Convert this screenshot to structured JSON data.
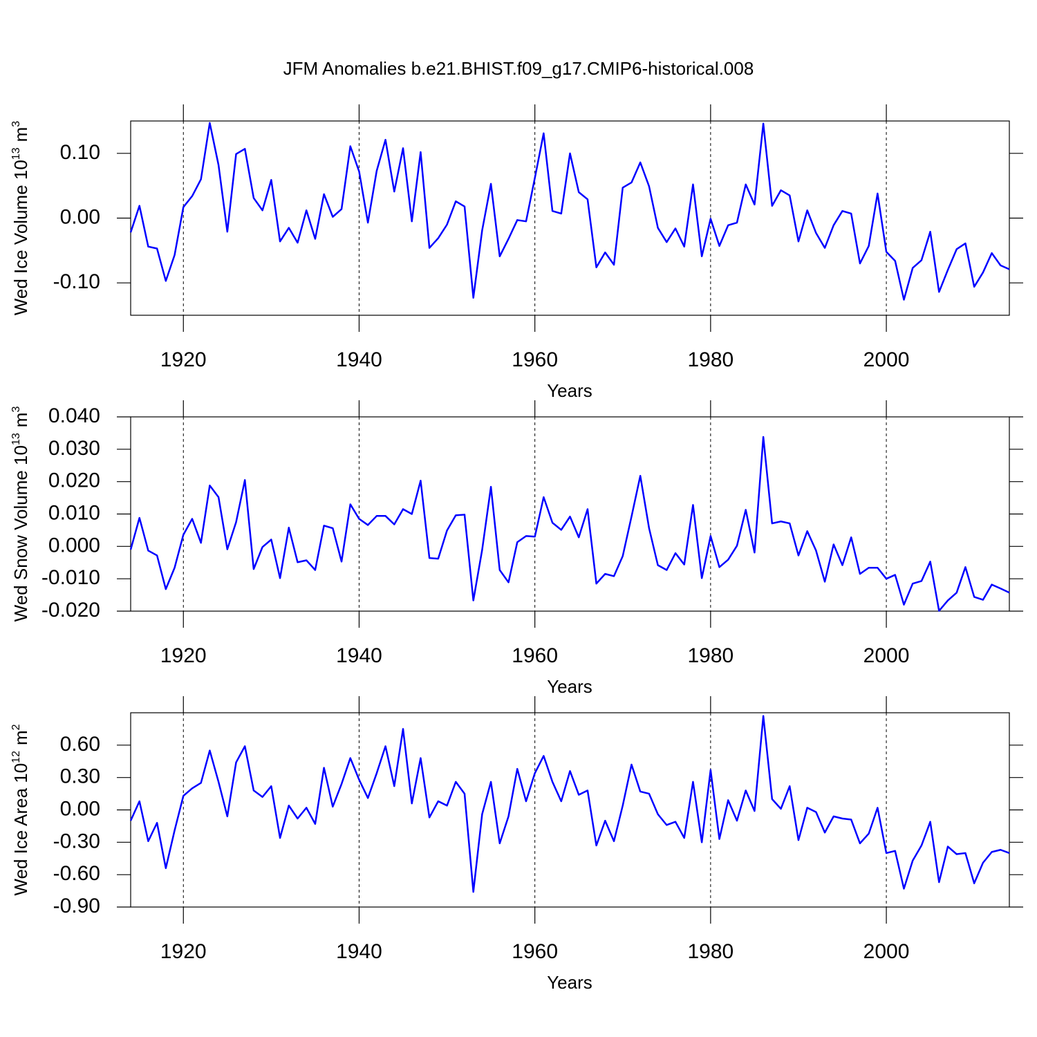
{
  "chart_data": [
    {
      "type": "line",
      "title": "JFM Anomalies b.e21.BHIST.f09_g17.CMIP6-historical.008",
      "ylabel": {
        "text": "Wed Ice Volume 10",
        "exponent": "13",
        "unit": "m",
        "unit_exponent": "3"
      },
      "xlabel": "Years",
      "color": "#0000ff",
      "grid": true,
      "xlim": [
        1914,
        2014
      ],
      "xticks": [
        1920,
        1940,
        1960,
        1980,
        2000
      ],
      "ylim": [
        -0.15,
        0.15
      ],
      "yticks": [
        {
          "value": -0.1,
          "label": "-0.10"
        },
        {
          "value": 0,
          "label": "0.00"
        },
        {
          "value": 0.1,
          "label": "0.10"
        }
      ],
      "x": [
        1914,
        1915,
        1916,
        1917,
        1918,
        1919,
        1920,
        1921,
        1922,
        1923,
        1924,
        1925,
        1926,
        1927,
        1928,
        1929,
        1930,
        1931,
        1932,
        1933,
        1934,
        1935,
        1936,
        1937,
        1938,
        1939,
        1940,
        1941,
        1942,
        1943,
        1944,
        1945,
        1946,
        1947,
        1948,
        1949,
        1950,
        1951,
        1952,
        1953,
        1954,
        1955,
        1956,
        1957,
        1958,
        1959,
        1960,
        1961,
        1962,
        1963,
        1964,
        1965,
        1966,
        1967,
        1968,
        1969,
        1970,
        1971,
        1972,
        1973,
        1974,
        1975,
        1976,
        1977,
        1978,
        1979,
        1980,
        1981,
        1982,
        1983,
        1984,
        1985,
        1986,
        1987,
        1988,
        1989,
        1990,
        1991,
        1992,
        1993,
        1994,
        1995,
        1996,
        1997,
        1998,
        1999,
        2000,
        2001,
        2002,
        2003,
        2004,
        2005,
        2006,
        2007,
        2008,
        2009,
        2010,
        2011,
        2012,
        2013,
        2014
      ],
      "values": [
        -0.022,
        0.019,
        -0.044,
        -0.047,
        -0.097,
        -0.057,
        0.017,
        0.034,
        0.06,
        0.147,
        0.082,
        -0.021,
        0.099,
        0.107,
        0.031,
        0.012,
        0.059,
        -0.036,
        -0.015,
        -0.038,
        0.012,
        -0.032,
        0.037,
        0.002,
        0.014,
        0.111,
        0.072,
        -0.007,
        0.073,
        0.121,
        0.041,
        0.108,
        -0.005,
        0.102,
        -0.046,
        -0.031,
        -0.01,
        0.026,
        0.018,
        -0.123,
        -0.019,
        0.053,
        -0.059,
        -0.032,
        -0.003,
        -0.005,
        0.062,
        0.131,
        0.011,
        0.007,
        0.1,
        0.04,
        0.029,
        -0.076,
        -0.053,
        -0.072,
        0.047,
        0.055,
        0.086,
        0.049,
        -0.015,
        -0.037,
        -0.016,
        -0.044,
        0.052,
        -0.059,
        -0.001,
        -0.043,
        -0.011,
        -0.007,
        0.052,
        0.021,
        0.146,
        0.019,
        0.043,
        0.035,
        -0.036,
        0.012,
        -0.023,
        -0.046,
        -0.011,
        0.011,
        0.007,
        -0.07,
        -0.043,
        0.038,
        -0.052,
        -0.066,
        -0.126,
        -0.077,
        -0.065,
        -0.021,
        -0.114,
        -0.08,
        -0.048,
        -0.039,
        -0.106,
        -0.084,
        -0.054,
        -0.073,
        -0.079
      ]
    },
    {
      "type": "line",
      "ylabel": {
        "text": "Wed Snow Volume 10",
        "exponent": "13",
        "unit": "m",
        "unit_exponent": "3"
      },
      "xlabel": "Years",
      "color": "#0000ff",
      "grid": true,
      "xlim": [
        1914,
        2014
      ],
      "xticks": [
        1920,
        1940,
        1960,
        1980,
        2000
      ],
      "ylim": [
        -0.02,
        0.04
      ],
      "yticks": [
        {
          "value": -0.02,
          "label": "-0.020"
        },
        {
          "value": -0.01,
          "label": "-0.010"
        },
        {
          "value": 0,
          "label": "0.000"
        },
        {
          "value": 0.01,
          "label": "0.010"
        },
        {
          "value": 0.02,
          "label": "0.020"
        },
        {
          "value": 0.03,
          "label": "0.030"
        },
        {
          "value": 0.04,
          "label": "0.040"
        }
      ],
      "x": [
        1914,
        1915,
        1916,
        1917,
        1918,
        1919,
        1920,
        1921,
        1922,
        1923,
        1924,
        1925,
        1926,
        1927,
        1928,
        1929,
        1930,
        1931,
        1932,
        1933,
        1934,
        1935,
        1936,
        1937,
        1938,
        1939,
        1940,
        1941,
        1942,
        1943,
        1944,
        1945,
        1946,
        1947,
        1948,
        1949,
        1950,
        1951,
        1952,
        1953,
        1954,
        1955,
        1956,
        1957,
        1958,
        1959,
        1960,
        1961,
        1962,
        1963,
        1964,
        1965,
        1966,
        1967,
        1968,
        1969,
        1970,
        1971,
        1972,
        1973,
        1974,
        1975,
        1976,
        1977,
        1978,
        1979,
        1980,
        1981,
        1982,
        1983,
        1984,
        1985,
        1986,
        1987,
        1988,
        1989,
        1990,
        1991,
        1992,
        1993,
        1994,
        1995,
        1996,
        1997,
        1998,
        1999,
        2000,
        2001,
        2002,
        2003,
        2004,
        2005,
        2006,
        2007,
        2008,
        2009,
        2010,
        2011,
        2012,
        2013,
        2014
      ],
      "values": [
        -0.001,
        0.0088,
        -0.0013,
        -0.0028,
        -0.0132,
        -0.0066,
        0.0036,
        0.0085,
        0.0011,
        0.0188,
        0.0152,
        -0.0009,
        0.0075,
        0.0205,
        -0.007,
        -0.0002,
        0.0021,
        -0.0098,
        0.0058,
        -0.0049,
        -0.0043,
        -0.0073,
        0.0064,
        0.0056,
        -0.0047,
        0.013,
        0.0085,
        0.0066,
        0.0094,
        0.0094,
        0.0068,
        0.0115,
        0.01,
        0.0203,
        -0.0036,
        -0.0038,
        0.0049,
        0.0096,
        0.0098,
        -0.0167,
        -0.0011,
        0.0184,
        -0.0073,
        -0.0111,
        0.0013,
        0.0032,
        0.003,
        0.0152,
        0.0073,
        0.0051,
        0.0092,
        0.0028,
        0.0115,
        -0.0115,
        -0.0085,
        -0.0092,
        -0.003,
        0.0092,
        0.0218,
        0.0056,
        -0.0058,
        -0.0073,
        -0.0021,
        -0.0056,
        0.0128,
        -0.0098,
        0.0032,
        -0.0064,
        -0.0041,
        0.0002,
        0.0113,
        -0.0019,
        0.0338,
        0.0071,
        0.0077,
        0.0071,
        -0.0028,
        0.0047,
        -0.0013,
        -0.0109,
        0.0006,
        -0.0058,
        0.0028,
        -0.0085,
        -0.0066,
        -0.0066,
        -0.01,
        -0.0088,
        -0.018,
        -0.0115,
        -0.0107,
        -0.0047,
        -0.0199,
        -0.0167,
        -0.0143,
        -0.0064,
        -0.0156,
        -0.0165,
        -0.0118,
        -0.013,
        -0.0143
      ]
    },
    {
      "type": "line",
      "ylabel": {
        "text": "Wed Ice Area 10",
        "exponent": "12",
        "unit": "m",
        "unit_exponent": "2"
      },
      "xlabel": "Years",
      "color": "#0000ff",
      "grid": true,
      "xlim": [
        1914,
        2014
      ],
      "xticks": [
        1920,
        1940,
        1960,
        1980,
        2000
      ],
      "ylim": [
        -0.9,
        0.9
      ],
      "yticks": [
        {
          "value": -0.9,
          "label": "-0.90"
        },
        {
          "value": -0.6,
          "label": "-0.60"
        },
        {
          "value": -0.3,
          "label": "-0.30"
        },
        {
          "value": 0,
          "label": "0.00"
        },
        {
          "value": 0.3,
          "label": "0.30"
        },
        {
          "value": 0.6,
          "label": "0.60"
        }
      ],
      "x": [
        1914,
        1915,
        1916,
        1917,
        1918,
        1919,
        1920,
        1921,
        1922,
        1923,
        1924,
        1925,
        1926,
        1927,
        1928,
        1929,
        1930,
        1931,
        1932,
        1933,
        1934,
        1935,
        1936,
        1937,
        1938,
        1939,
        1940,
        1941,
        1942,
        1943,
        1944,
        1945,
        1946,
        1947,
        1948,
        1949,
        1950,
        1951,
        1952,
        1953,
        1954,
        1955,
        1956,
        1957,
        1958,
        1959,
        1960,
        1961,
        1962,
        1963,
        1964,
        1965,
        1966,
        1967,
        1968,
        1969,
        1970,
        1971,
        1972,
        1973,
        1974,
        1975,
        1976,
        1977,
        1978,
        1979,
        1980,
        1981,
        1982,
        1983,
        1984,
        1985,
        1986,
        1987,
        1988,
        1989,
        1990,
        1991,
        1992,
        1993,
        1994,
        1995,
        1996,
        1997,
        1998,
        1999,
        2000,
        2001,
        2002,
        2003,
        2004,
        2005,
        2006,
        2007,
        2008,
        2009,
        2010,
        2011,
        2012,
        2013,
        2014
      ],
      "values": [
        -0.1,
        0.08,
        -0.29,
        -0.12,
        -0.54,
        -0.19,
        0.13,
        0.2,
        0.25,
        0.55,
        0.26,
        -0.06,
        0.44,
        0.59,
        0.18,
        0.12,
        0.22,
        -0.26,
        0.04,
        -0.08,
        0.02,
        -0.13,
        0.39,
        0.03,
        0.24,
        0.48,
        0.28,
        0.11,
        0.34,
        0.59,
        0.22,
        0.75,
        0.06,
        0.48,
        -0.07,
        0.08,
        0.04,
        0.26,
        0.15,
        -0.76,
        -0.04,
        0.26,
        -0.31,
        -0.06,
        0.38,
        0.08,
        0.34,
        0.5,
        0.26,
        0.08,
        0.36,
        0.14,
        0.18,
        -0.33,
        -0.1,
        -0.29,
        0.04,
        0.42,
        0.17,
        0.15,
        -0.04,
        -0.14,
        -0.11,
        -0.26,
        0.26,
        -0.3,
        0.37,
        -0.27,
        0.09,
        -0.1,
        0.18,
        -0.01,
        0.87,
        0.1,
        0.01,
        0.22,
        -0.28,
        0.02,
        -0.02,
        -0.21,
        -0.06,
        -0.08,
        -0.09,
        -0.31,
        -0.22,
        0.02,
        -0.4,
        -0.38,
        -0.73,
        -0.47,
        -0.33,
        -0.11,
        -0.67,
        -0.34,
        -0.41,
        -0.4,
        -0.68,
        -0.49,
        -0.39,
        -0.37,
        -0.4
      ]
    }
  ]
}
